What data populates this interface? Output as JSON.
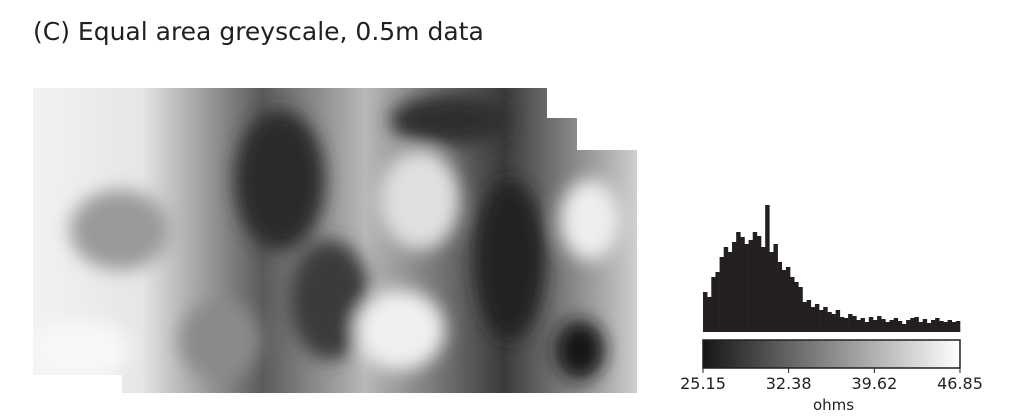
{
  "chart_data": {
    "type": "histogram",
    "title": "(C) Equal area greyscale, 0.5m data",
    "xlabel": "ohms",
    "color": "#231f20",
    "colormap": [
      "#161616",
      "#ffffff"
    ],
    "bins": [
      25.15,
      25.5,
      25.85,
      26.2,
      26.55,
      26.9,
      27.25,
      27.6,
      27.95,
      28.3,
      28.65,
      29,
      29.35,
      29.7,
      30.05,
      30.4,
      30.75,
      31.1,
      31.45,
      31.8,
      32.15,
      32.5,
      32.85,
      33.2,
      33.55,
      33.9,
      34.25,
      34.6,
      34.95,
      35.3,
      35.65,
      36,
      36.35,
      36.7,
      37.05,
      37.4,
      37.75,
      38.1,
      38.45,
      38.8,
      39.15,
      39.5,
      39.85,
      40.2,
      40.55,
      40.9,
      41.25,
      41.6,
      41.95,
      42.3,
      42.65,
      43,
      43.35,
      43.7,
      44.05,
      44.4,
      44.75,
      45.1,
      45.45,
      45.8,
      46.15,
      46.5,
      46.85
    ],
    "values": [
      40,
      35,
      55,
      60,
      75,
      85,
      80,
      90,
      100,
      95,
      88,
      92,
      100,
      96,
      85,
      127,
      80,
      88,
      70,
      62,
      65,
      55,
      50,
      45,
      30,
      32,
      25,
      28,
      22,
      25,
      20,
      18,
      22,
      15,
      14,
      18,
      16,
      12,
      14,
      10,
      15,
      12,
      16,
      13,
      10,
      12,
      14,
      11,
      8,
      12,
      14,
      15,
      10,
      13,
      9,
      12,
      14,
      11,
      10,
      12,
      10,
      11
    ],
    "xlim": [
      25.15,
      46.85
    ],
    "xticks": [
      25.15,
      32.38,
      39.62,
      46.85
    ]
  }
}
